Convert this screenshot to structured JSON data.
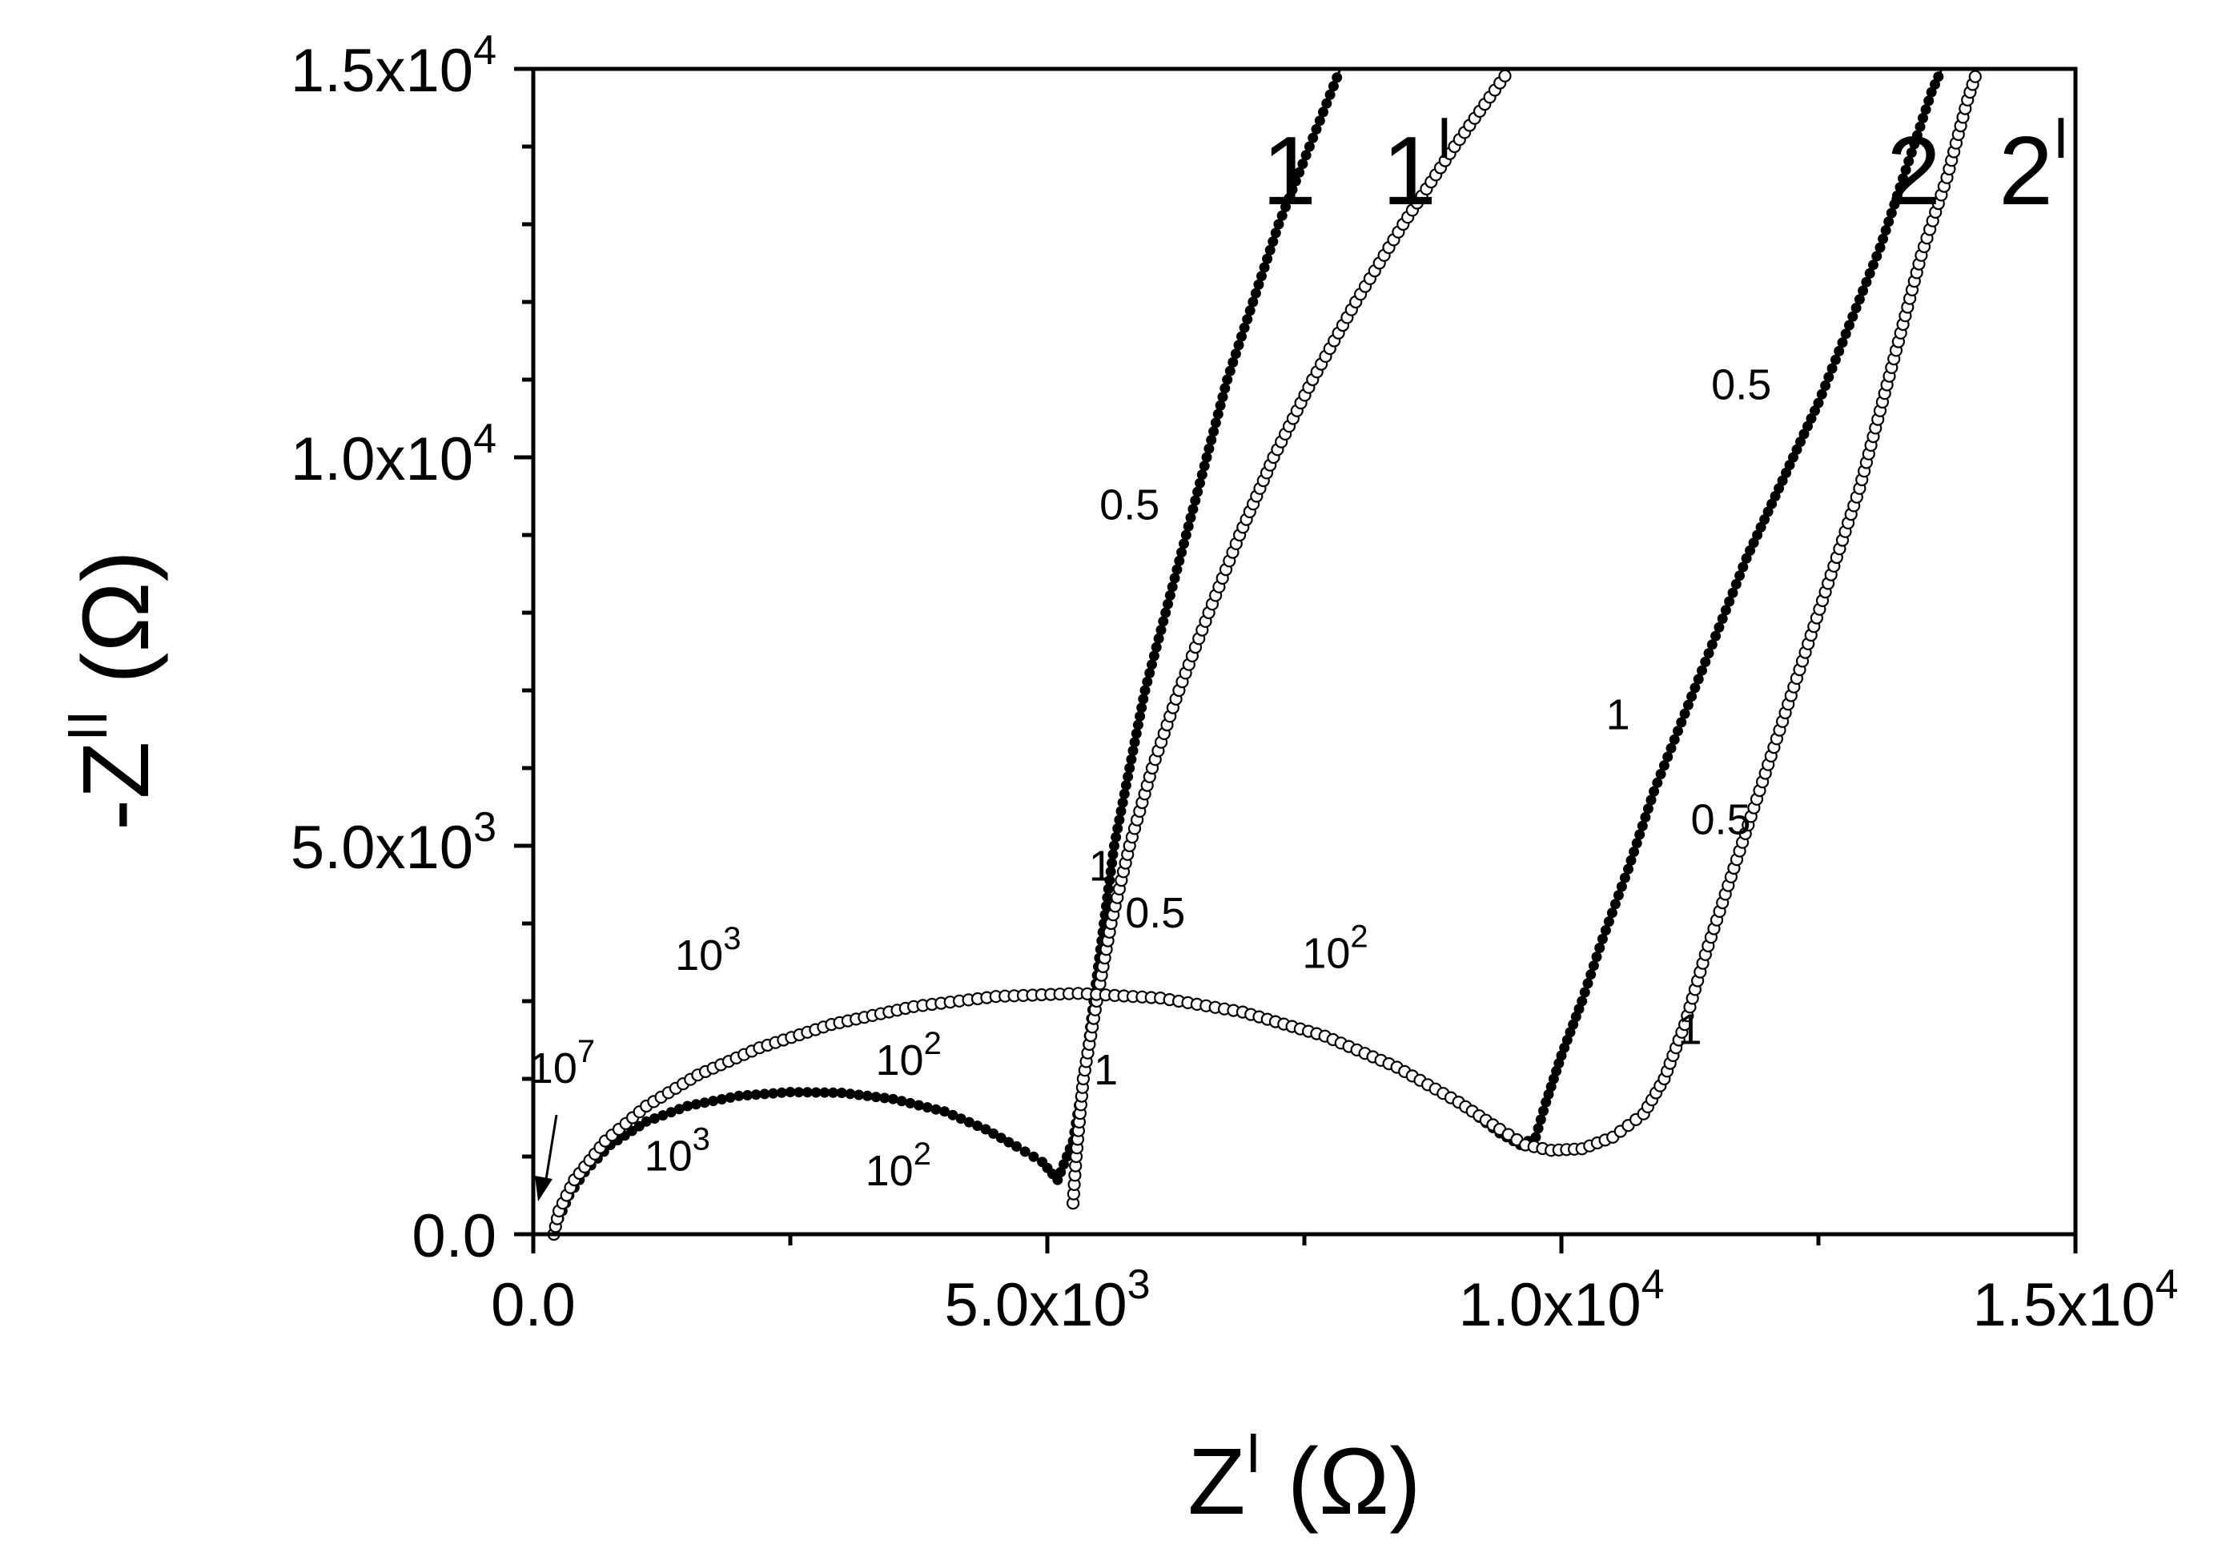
{
  "chart_data": {
    "type": "scatter",
    "title": "",
    "xlabel": {
      "base": "Z",
      "sup": "I",
      "unit": " (Ω)"
    },
    "ylabel": {
      "base": "-Z",
      "sup": "II",
      "unit": " (Ω)"
    },
    "xlim": [
      0,
      15000
    ],
    "ylim": [
      0,
      15000
    ],
    "grid": false,
    "x_ticks": [
      {
        "value": 0,
        "mant": "0.0",
        "exp": ""
      },
      {
        "value": 5000,
        "mant": "5.0x10",
        "exp": "3"
      },
      {
        "value": 10000,
        "mant": "1.0x10",
        "exp": "4"
      },
      {
        "value": 15000,
        "mant": "1.5x10",
        "exp": "4"
      }
    ],
    "y_ticks": [
      {
        "value": 0,
        "mant": "0.0",
        "exp": ""
      },
      {
        "value": 5000,
        "mant": "5.0x10",
        "exp": "3"
      },
      {
        "value": 10000,
        "mant": "1.0x10",
        "exp": "4"
      },
      {
        "value": 15000,
        "mant": "1.5x10",
        "exp": "4"
      }
    ],
    "series": [
      {
        "label": {
          "base": "1",
          "sup": ""
        },
        "marker": "filled",
        "points": [
          [
            200,
            0
          ],
          [
            250,
            200
          ],
          [
            350,
            500
          ],
          [
            500,
            800
          ],
          [
            750,
            1150
          ],
          [
            1100,
            1450
          ],
          [
            1500,
            1650
          ],
          [
            2000,
            1780
          ],
          [
            2500,
            1830
          ],
          [
            3000,
            1820
          ],
          [
            3500,
            1740
          ],
          [
            4000,
            1580
          ],
          [
            4400,
            1350
          ],
          [
            4700,
            1130
          ],
          [
            4950,
            930
          ],
          [
            5100,
            700
          ],
          [
            5250,
            1200
          ],
          [
            5350,
            2000
          ],
          [
            5450,
            3000
          ],
          [
            5550,
            4000
          ],
          [
            5650,
            5000
          ],
          [
            5800,
            6000
          ],
          [
            5950,
            7000
          ],
          [
            6150,
            8000
          ],
          [
            6350,
            9000
          ],
          [
            6550,
            10000
          ],
          [
            6750,
            11000
          ],
          [
            7000,
            12000
          ],
          [
            7250,
            13000
          ],
          [
            7550,
            14000
          ],
          [
            7850,
            15000
          ]
        ]
      },
      {
        "label": {
          "base": "1",
          "sup": "I"
        },
        "marker": "open",
        "points": [
          [
            5250,
            400
          ],
          [
            5280,
            1000
          ],
          [
            5350,
            2000
          ],
          [
            5480,
            3000
          ],
          [
            5620,
            4000
          ],
          [
            5800,
            5000
          ],
          [
            6020,
            6000
          ],
          [
            6280,
            7000
          ],
          [
            6570,
            8000
          ],
          [
            6870,
            9000
          ],
          [
            7200,
            10000
          ],
          [
            7580,
            11000
          ],
          [
            8000,
            12000
          ],
          [
            8460,
            13000
          ],
          [
            8960,
            14000
          ],
          [
            9500,
            15000
          ]
        ]
      },
      {
        "label": {
          "base": "2",
          "sup": ""
        },
        "marker": "filled",
        "points": [
          [
            200,
            0
          ],
          [
            250,
            300
          ],
          [
            400,
            700
          ],
          [
            700,
            1200
          ],
          [
            1100,
            1650
          ],
          [
            1600,
            2050
          ],
          [
            2200,
            2400
          ],
          [
            2900,
            2700
          ],
          [
            3700,
            2930
          ],
          [
            4500,
            3060
          ],
          [
            5300,
            3100
          ],
          [
            6100,
            3040
          ],
          [
            6900,
            2860
          ],
          [
            7700,
            2550
          ],
          [
            8400,
            2150
          ],
          [
            9000,
            1700
          ],
          [
            9400,
            1300
          ],
          [
            9600,
            1150
          ],
          [
            9750,
            1250
          ],
          [
            9850,
            1700
          ],
          [
            10000,
            2300
          ],
          [
            10200,
            3000
          ],
          [
            10400,
            3800
          ],
          [
            10650,
            4700
          ],
          [
            10900,
            5700
          ],
          [
            11200,
            6700
          ],
          [
            11500,
            7700
          ],
          [
            11800,
            8700
          ],
          [
            12150,
            9700
          ],
          [
            12500,
            10700
          ],
          [
            12800,
            11700
          ],
          [
            13100,
            12700
          ],
          [
            13350,
            13700
          ],
          [
            13600,
            14700
          ],
          [
            13700,
            15000
          ]
        ]
      },
      {
        "label": {
          "base": "2",
          "sup": "I"
        },
        "marker": "open",
        "points": [
          [
            200,
            0
          ],
          [
            250,
            300
          ],
          [
            400,
            700
          ],
          [
            700,
            1200
          ],
          [
            1100,
            1650
          ],
          [
            1600,
            2050
          ],
          [
            2200,
            2400
          ],
          [
            2900,
            2700
          ],
          [
            3700,
            2930
          ],
          [
            4500,
            3060
          ],
          [
            5300,
            3100
          ],
          [
            6100,
            3040
          ],
          [
            6900,
            2860
          ],
          [
            7700,
            2550
          ],
          [
            8400,
            2150
          ],
          [
            9000,
            1700
          ],
          [
            9400,
            1350
          ],
          [
            9650,
            1150
          ],
          [
            9900,
            1080
          ],
          [
            10200,
            1100
          ],
          [
            10500,
            1250
          ],
          [
            10800,
            1550
          ],
          [
            11000,
            2000
          ],
          [
            11200,
            2700
          ],
          [
            11400,
            3600
          ],
          [
            11650,
            4600
          ],
          [
            11900,
            5600
          ],
          [
            12150,
            6600
          ],
          [
            12400,
            7600
          ],
          [
            12650,
            8600
          ],
          [
            12900,
            9600
          ],
          [
            13100,
            10600
          ],
          [
            13300,
            11600
          ],
          [
            13500,
            12600
          ],
          [
            13750,
            13600
          ],
          [
            13950,
            14600
          ],
          [
            14050,
            15000
          ]
        ]
      }
    ],
    "annotations": [
      {
        "base": "10",
        "sup": "7",
        "x": 280,
        "y": 1950
      },
      {
        "base": "10",
        "sup": "3",
        "x": 1700,
        "y": 3400
      },
      {
        "base": "10",
        "sup": "3",
        "x": 1400,
        "y": 820
      },
      {
        "base": "10",
        "sup": "2",
        "x": 3650,
        "y": 2050
      },
      {
        "base": "10",
        "sup": "2",
        "x": 3550,
        "y": 630
      },
      {
        "base": "10",
        "sup": "2",
        "x": 7800,
        "y": 3430
      },
      {
        "base": "0.5",
        "sup": "",
        "x": 5800,
        "y": 9200
      },
      {
        "base": "1",
        "sup": "",
        "x": 5520,
        "y": 4550
      },
      {
        "base": "0.5",
        "sup": "",
        "x": 6050,
        "y": 3950
      },
      {
        "base": "1",
        "sup": "",
        "x": 5570,
        "y": 1930
      },
      {
        "base": "0.5",
        "sup": "",
        "x": 11750,
        "y": 10750
      },
      {
        "base": "1",
        "sup": "",
        "x": 10550,
        "y": 6500
      },
      {
        "base": "0.5",
        "sup": "",
        "x": 11550,
        "y": 5150
      },
      {
        "base": "1",
        "sup": "",
        "x": 11250,
        "y": 2450
      }
    ]
  }
}
